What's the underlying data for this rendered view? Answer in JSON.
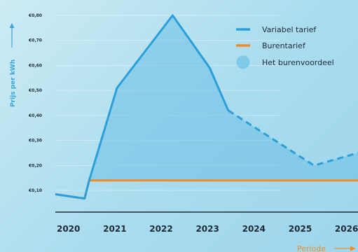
{
  "chart_data": {
    "type": "line",
    "title": "",
    "xlabel": "Periode",
    "ylabel": "Prijs per kWh",
    "x_ticks": [
      "2020",
      "2021",
      "2022",
      "2023",
      "2024",
      "2025",
      "2026"
    ],
    "y_ticks": [
      "€0,10",
      "€0,20",
      "€0,30",
      "€0,40",
      "€0,50",
      "€0,60",
      "€0,70",
      "€0,80"
    ],
    "ylim": [
      0.05,
      0.8
    ],
    "xlim": [
      2019.97,
      2026.5
    ],
    "grid": true,
    "legend_position": "top-right",
    "series": [
      {
        "name": "Variabel tarief",
        "color": "#2a9fd9",
        "x": [
          2019.97,
          2020.6,
          2020.7,
          2021.3,
          2022.5,
          2023.3,
          2023.7,
          2025.55,
          2026.5
        ],
        "y": [
          0.085,
          0.068,
          0.14,
          0.51,
          0.8,
          0.59,
          0.42,
          0.2,
          0.25
        ],
        "projected_from": 2023.7
      },
      {
        "name": "Burentarief",
        "color": "#f28c28",
        "x": [
          2019.97,
          2020.6,
          2020.7,
          2026.5
        ],
        "y": [
          0.085,
          0.068,
          0.14,
          0.14
        ]
      }
    ],
    "area": {
      "name": "Het burenvoordeel",
      "color": "#6cc0e6",
      "between": [
        "Variabel tarief",
        "Burentarief"
      ]
    }
  }
}
